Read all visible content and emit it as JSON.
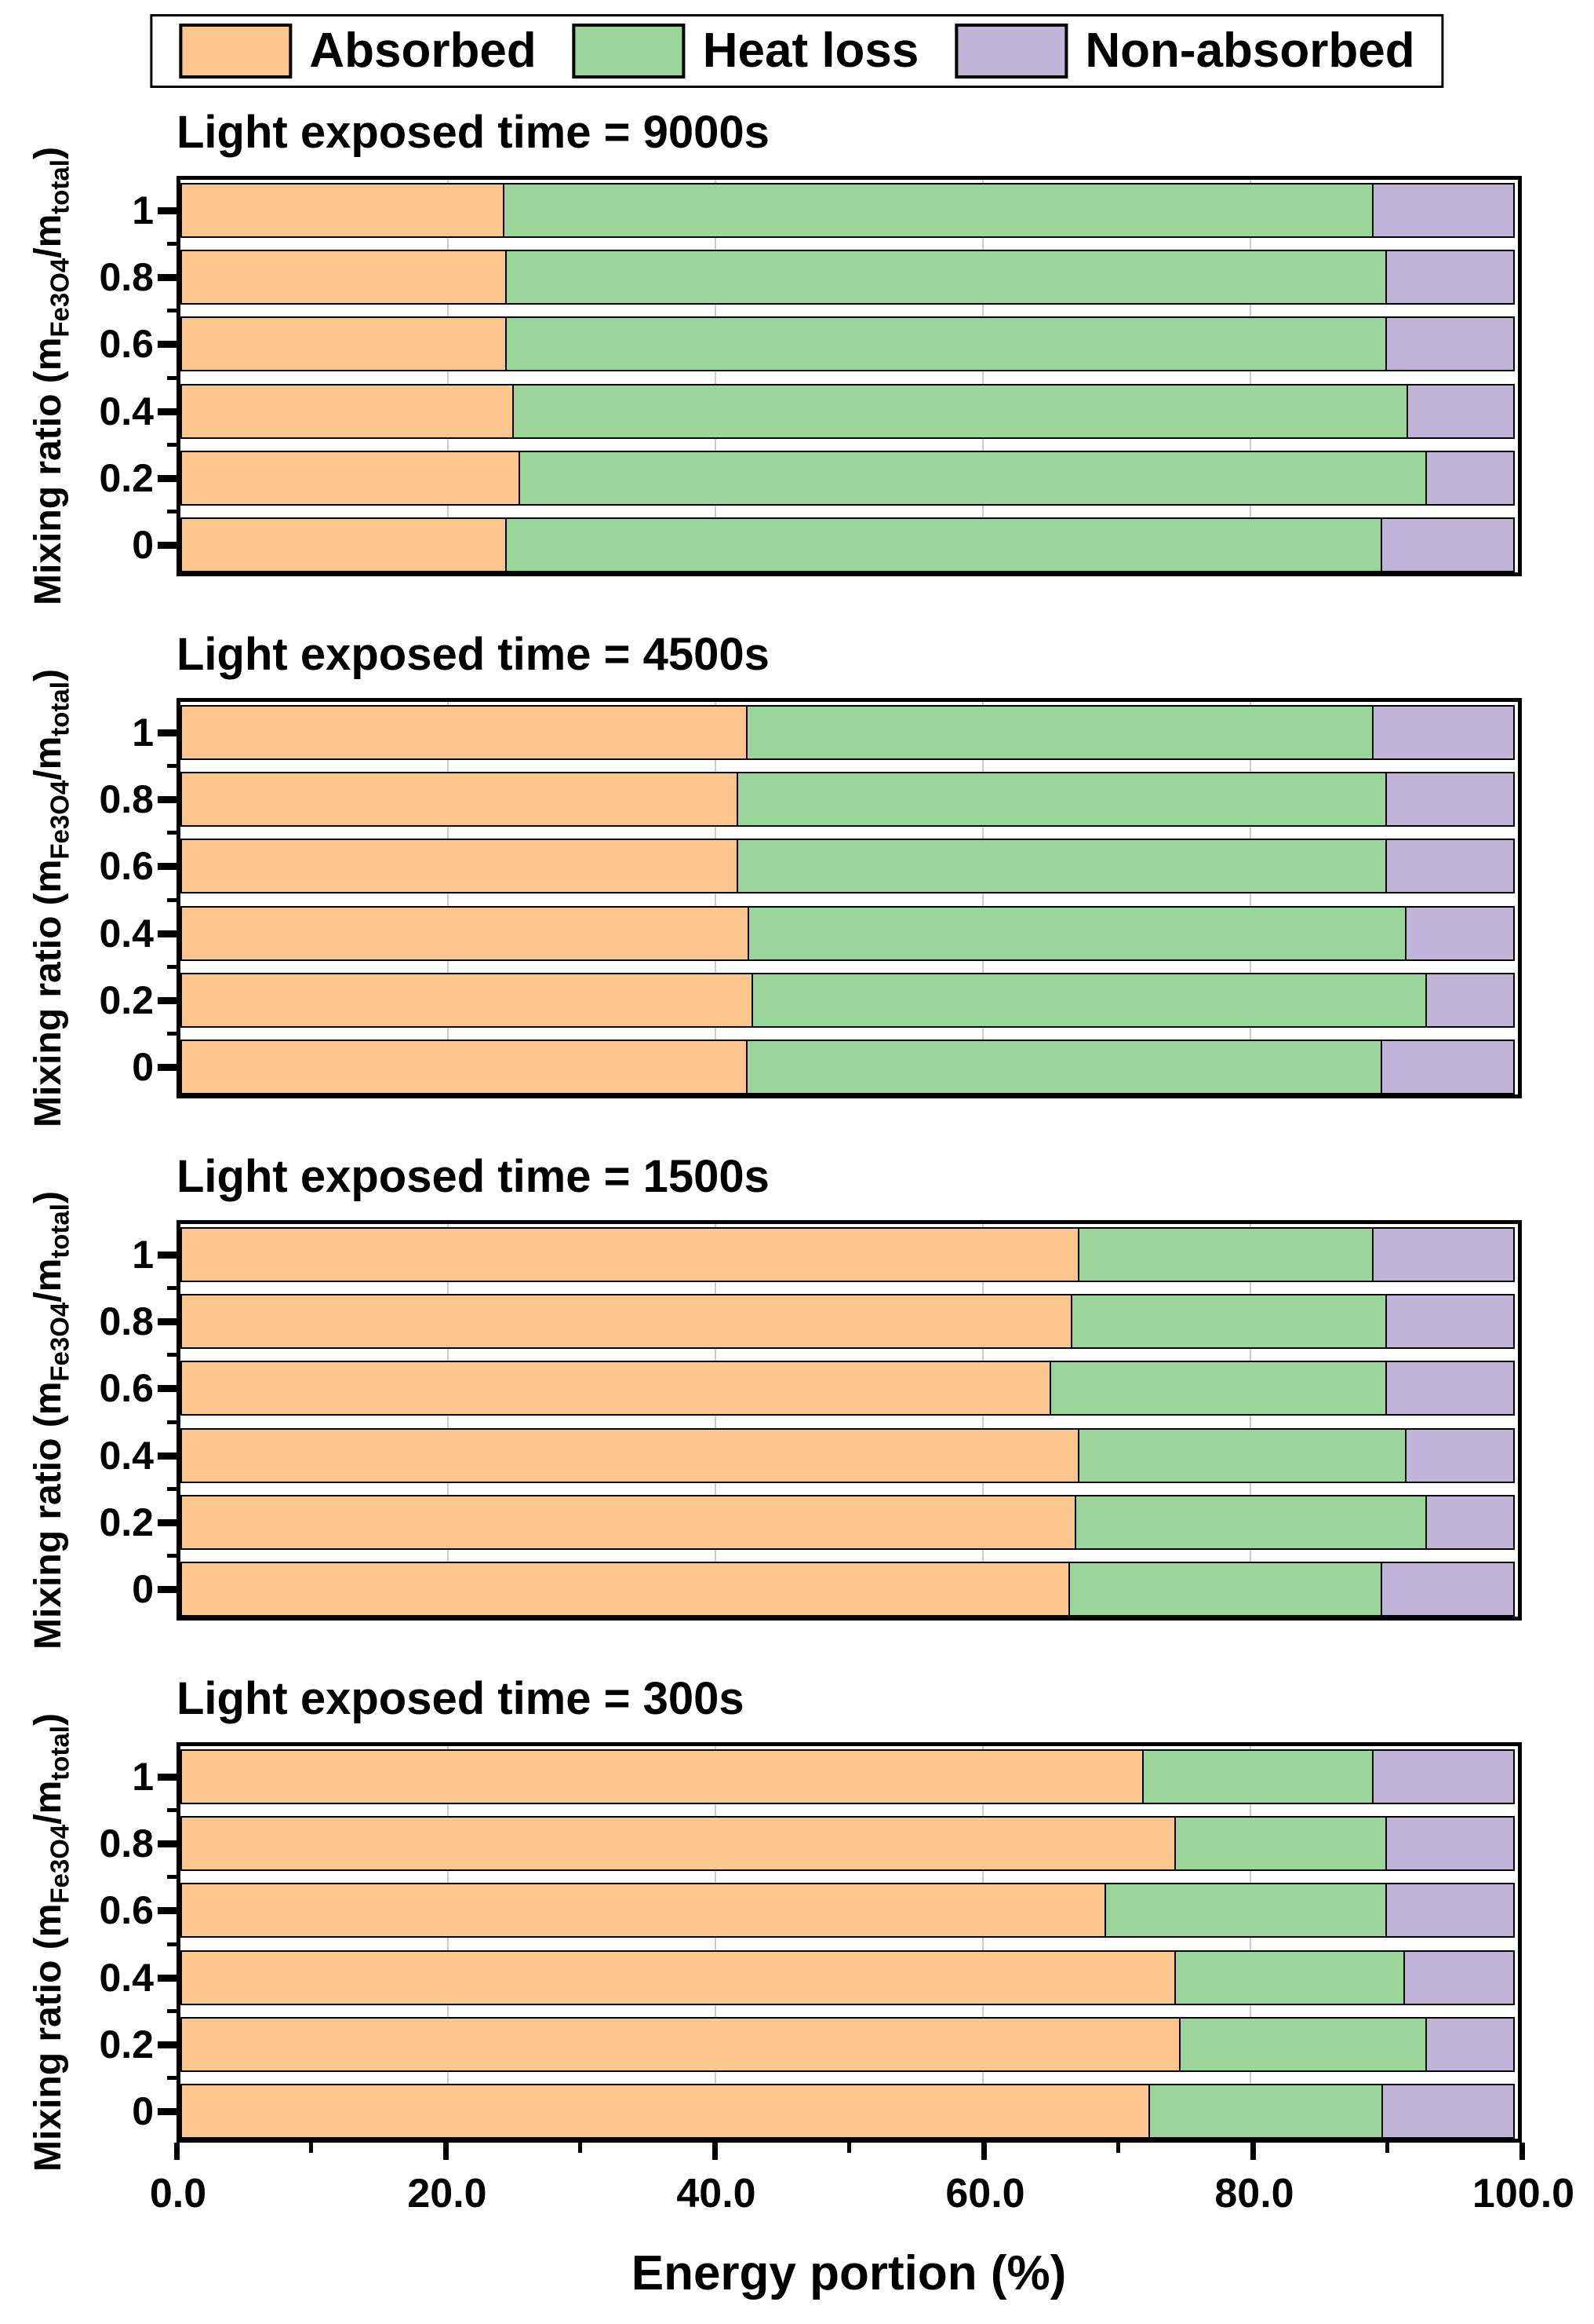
{
  "figure": {
    "legend": [
      {
        "name": "Absorbed",
        "color": "#FBC58C"
      },
      {
        "name": "Heat loss",
        "color": "#9AD69A"
      },
      {
        "name": "Non-absorbed",
        "color": "#C2B3D8"
      }
    ],
    "ylabel_parts": {
      "pre": "Mixing ratio (m",
      "sub1": "Fe3O4",
      "mid": "/m",
      "sub2": "total",
      "post": ")"
    }
  },
  "chart_data": {
    "type": "bar",
    "orientation": "horizontal",
    "stacked": true,
    "xlabel": "Energy portion (%)",
    "ylabel": "Mixing ratio (m_Fe3O4/m_total)",
    "xlim": [
      0,
      100
    ],
    "x_ticks": [
      0,
      20,
      40,
      60,
      80,
      100
    ],
    "x_tick_labels": [
      "0.0",
      "20.0",
      "40.0",
      "60.0",
      "80.0",
      "100.0"
    ],
    "x_minor_ticks": [
      10,
      30,
      50,
      70,
      90
    ],
    "grid": "vertical gridlines at major x ticks",
    "legend_position": "top",
    "legend_entries": [
      "Absorbed",
      "Heat loss",
      "Non-absorbed"
    ],
    "colors": {
      "Absorbed": "#FBC58C",
      "Heat loss": "#9AD69A",
      "Non-absorbed": "#C2B3D8"
    },
    "panels": [
      {
        "title": "Light exposed time = 9000s",
        "categories": [
          "1",
          "0.8",
          "0.6",
          "0.4",
          "0.2",
          "0"
        ],
        "series": [
          {
            "name": "Absorbed",
            "values": [
              24.2,
              24.4,
              24.4,
              24.9,
              25.4,
              24.4
            ]
          },
          {
            "name": "Heat loss",
            "values": [
              65.1,
              65.9,
              65.9,
              67.0,
              67.9,
              65.6
            ]
          },
          {
            "name": "Non-absorbed",
            "values": [
              10.7,
              9.7,
              9.7,
              8.1,
              6.7,
              10.0
            ]
          }
        ]
      },
      {
        "title": "Light exposed time = 4500s",
        "categories": [
          "1",
          "0.8",
          "0.6",
          "0.4",
          "0.2",
          "0"
        ],
        "series": [
          {
            "name": "Absorbed",
            "values": [
              42.4,
              41.7,
              41.7,
              42.5,
              42.8,
              42.4
            ]
          },
          {
            "name": "Heat loss",
            "values": [
              46.9,
              48.6,
              48.6,
              49.3,
              50.5,
              47.6
            ]
          },
          {
            "name": "Non-absorbed",
            "values": [
              10.7,
              9.7,
              9.7,
              8.2,
              6.7,
              10.0
            ]
          }
        ]
      },
      {
        "title": "Light exposed time = 1500s",
        "categories": [
          "1",
          "0.8",
          "0.6",
          "0.4",
          "0.2",
          "0"
        ],
        "series": [
          {
            "name": "Absorbed",
            "values": [
              67.2,
              66.7,
              65.1,
              67.2,
              67.0,
              66.5
            ]
          },
          {
            "name": "Heat loss",
            "values": [
              22.1,
              23.6,
              25.2,
              24.6,
              26.3,
              23.5
            ]
          },
          {
            "name": "Non-absorbed",
            "values": [
              10.7,
              9.7,
              9.7,
              8.2,
              6.7,
              10.0
            ]
          }
        ]
      },
      {
        "title": "Light exposed time = 300s",
        "categories": [
          "1",
          "0.8",
          "0.6",
          "0.4",
          "0.2",
          "0"
        ],
        "series": [
          {
            "name": "Absorbed",
            "values": [
              72.0,
              74.4,
              69.2,
              74.4,
              74.8,
              72.5
            ]
          },
          {
            "name": "Heat loss",
            "values": [
              17.3,
              15.9,
              21.1,
              17.3,
              18.5,
              17.5
            ]
          },
          {
            "name": "Non-absorbed",
            "values": [
              10.7,
              9.7,
              9.7,
              8.3,
              6.7,
              10.0
            ]
          }
        ]
      }
    ]
  }
}
